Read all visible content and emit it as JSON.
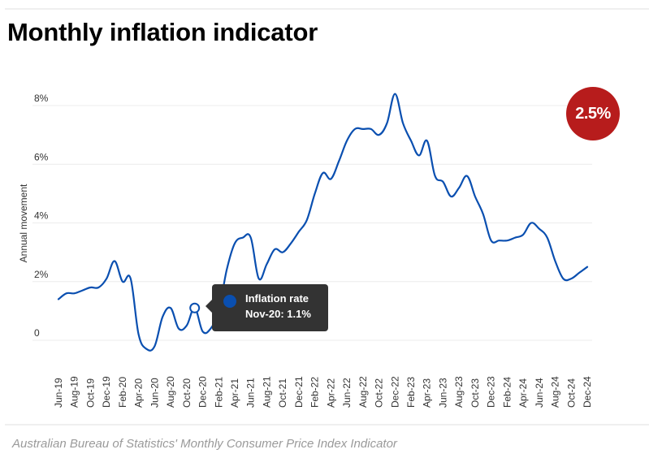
{
  "header": {
    "title": "Monthly inflation indicator"
  },
  "footer": {
    "source": "Australian Bureau of Statistics' Monthly Consumer Price Index Indicator"
  },
  "colors": {
    "line": "#0a4fb0",
    "badge": "#b71c1c",
    "tooltip_bg": "#333333",
    "grid": "#ececec",
    "axis_text": "#333333"
  },
  "badge": {
    "value": "2.5%"
  },
  "tooltip": {
    "series_name": "Inflation rate",
    "text": "Nov-20: 1.1%",
    "highlight_month": "Nov-20",
    "highlight_value": 1.1
  },
  "chart_data": {
    "type": "line",
    "title": "Monthly inflation indicator",
    "xlabel": "",
    "ylabel": "Annual movement",
    "ylim": [
      0,
      8
    ],
    "yticks": [
      {
        "value": 0,
        "label": "0"
      },
      {
        "value": 2,
        "label": "2%"
      },
      {
        "value": 4,
        "label": "4%"
      },
      {
        "value": 6,
        "label": "6%"
      },
      {
        "value": 8,
        "label": "8%"
      }
    ],
    "grid": true,
    "legend": "none",
    "xtick_labels": [
      "Jun-19",
      "Aug-19",
      "Oct-19",
      "Dec-19",
      "Feb-20",
      "Apr-20",
      "Jun-20",
      "Aug-20",
      "Oct-20",
      "Dec-20",
      "Feb-21",
      "Apr-21",
      "Jun-21",
      "Aug-21",
      "Oct-21",
      "Dec-21",
      "Feb-22",
      "Apr-22",
      "Jun-22",
      "Aug-22",
      "Oct-22",
      "Dec-22",
      "Feb-23",
      "Apr-23",
      "Jun-23",
      "Aug-23",
      "Oct-23",
      "Dec-23",
      "Feb-24",
      "Apr-24",
      "Jun-24",
      "Aug-24",
      "Oct-24",
      "Dec-24"
    ],
    "series": [
      {
        "name": "Inflation rate",
        "x": [
          "Jun-19",
          "Jul-19",
          "Aug-19",
          "Sep-19",
          "Oct-19",
          "Nov-19",
          "Dec-19",
          "Jan-20",
          "Feb-20",
          "Mar-20",
          "Apr-20",
          "May-20",
          "Jun-20",
          "Jul-20",
          "Aug-20",
          "Sep-20",
          "Oct-20",
          "Nov-20",
          "Dec-20",
          "Jan-21",
          "Feb-21",
          "Mar-21",
          "Apr-21",
          "May-21",
          "Jun-21",
          "Jul-21",
          "Aug-21",
          "Sep-21",
          "Oct-21",
          "Nov-21",
          "Dec-21",
          "Jan-22",
          "Feb-22",
          "Mar-22",
          "Apr-22",
          "May-22",
          "Jun-22",
          "Jul-22",
          "Aug-22",
          "Sep-22",
          "Oct-22",
          "Nov-22",
          "Dec-22",
          "Jan-23",
          "Feb-23",
          "Mar-23",
          "Apr-23",
          "May-23",
          "Jun-23",
          "Jul-23",
          "Aug-23",
          "Sep-23",
          "Oct-23",
          "Nov-23",
          "Dec-23",
          "Jan-24",
          "Feb-24",
          "Mar-24",
          "Apr-24",
          "May-24",
          "Jun-24",
          "Jul-24",
          "Aug-24",
          "Sep-24",
          "Oct-24",
          "Nov-24",
          "Dec-24"
        ],
        "values": [
          1.4,
          1.6,
          1.6,
          1.7,
          1.8,
          1.8,
          2.1,
          2.7,
          2.0,
          2.1,
          0.2,
          -0.3,
          -0.2,
          0.8,
          1.1,
          0.4,
          0.5,
          1.1,
          0.3,
          0.4,
          1.0,
          2.4,
          3.3,
          3.5,
          3.5,
          2.1,
          2.6,
          3.1,
          3.0,
          3.3,
          3.7,
          4.1,
          5.0,
          5.7,
          5.5,
          6.1,
          6.8,
          7.2,
          7.2,
          7.2,
          7.0,
          7.4,
          8.4,
          7.4,
          6.8,
          6.3,
          6.8,
          5.6,
          5.4,
          4.9,
          5.2,
          5.6,
          4.9,
          4.3,
          3.4,
          3.4,
          3.4,
          3.5,
          3.6,
          4.0,
          3.8,
          3.5,
          2.7,
          2.1,
          2.1,
          2.3,
          2.5
        ]
      }
    ]
  }
}
